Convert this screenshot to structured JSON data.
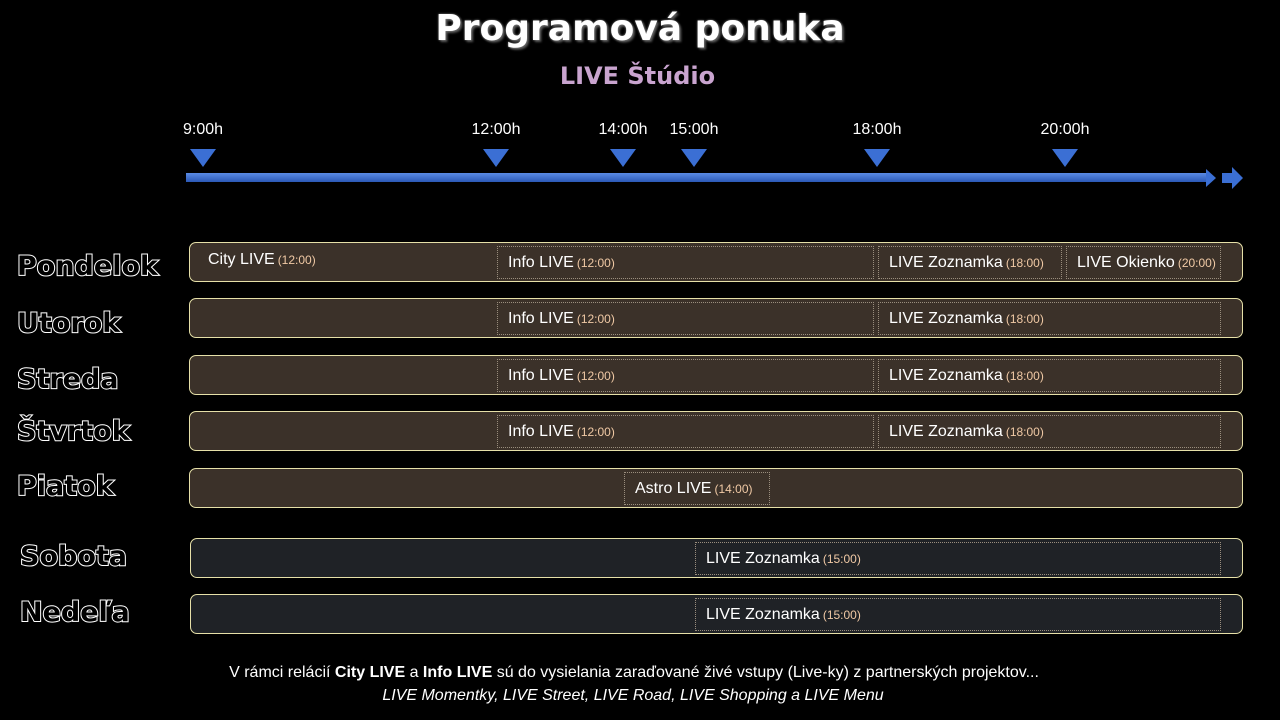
{
  "title": "Programová ponuka",
  "subtitle": "LIVE Štúdio",
  "ticks": [
    {
      "label": "9:00h",
      "hour": 9
    },
    {
      "label": "12:00h",
      "hour": 12
    },
    {
      "label": "14:00h",
      "hour": 14
    },
    {
      "label": "15:00h",
      "hour": 15
    },
    {
      "label": "18:00h",
      "hour": 18
    },
    {
      "label": "20:00h",
      "hour": 20
    }
  ],
  "days": [
    {
      "name": "Pondelok",
      "type": "weekday",
      "slots": [
        {
          "name": "City LIVE",
          "time": "(12:00)",
          "hour": 9,
          "end": 12,
          "plain": true
        },
        {
          "name": "Info LIVE",
          "time": "(12:00)",
          "hour": 12,
          "end": 18
        },
        {
          "name": "LIVE Zoznamka",
          "time": "(18:00)",
          "hour": 18,
          "end": 20
        },
        {
          "name": "LIVE Okienko",
          "time": "(20:00)",
          "hour": 20,
          "end": 21.7
        }
      ]
    },
    {
      "name": "Utorok",
      "type": "weekday",
      "slots": [
        {
          "name": "Info LIVE",
          "time": "(12:00)",
          "hour": 12,
          "end": 18
        },
        {
          "name": "LIVE Zoznamka",
          "time": "(18:00)",
          "hour": 18,
          "end": 21.7
        }
      ]
    },
    {
      "name": "Streda",
      "type": "weekday",
      "slots": [
        {
          "name": "Info LIVE",
          "time": "(12:00)",
          "hour": 12,
          "end": 18
        },
        {
          "name": "LIVE Zoznamka",
          "time": "(18:00)",
          "hour": 18,
          "end": 21.7
        }
      ]
    },
    {
      "name": "Štvrtok",
      "type": "weekday",
      "slots": [
        {
          "name": "Info LIVE",
          "time": "(12:00)",
          "hour": 12,
          "end": 18
        },
        {
          "name": "LIVE Zoznamka",
          "time": "(18:00)",
          "hour": 18,
          "end": 21.7
        }
      ]
    },
    {
      "name": "Piatok",
      "type": "weekday",
      "slots": [
        {
          "name": "Astro LIVE",
          "time": "(14:00)",
          "hour": 14,
          "end": 16.3
        }
      ]
    },
    {
      "name": "Sobota",
      "type": "weekend",
      "slots": [
        {
          "name": "LIVE Zoznamka",
          "time": "(15:00)",
          "hour": 15,
          "end": 21.7
        }
      ]
    },
    {
      "name": "Nedeľa",
      "type": "weekend",
      "slots": [
        {
          "name": "LIVE Zoznamka",
          "time": "(15:00)",
          "hour": 15,
          "end": 21.7
        }
      ]
    }
  ],
  "footer": {
    "line1_pre": "V rámci relácií ",
    "line1_b1": "City LIVE",
    "line1_mid": " a ",
    "line1_b2": "Info LIVE",
    "line1_post": " sú do vysielania zaraďované živé vstupy (Live-ky) z partnerských projektov...",
    "line2": "LIVE Momentky, LIVE Street, LIVE Road, LIVE Shopping a LIVE Menu"
  },
  "colors": {
    "axis": "#3b6fd4",
    "weekday_bar": "#3b3129",
    "weekend_bar": "#1f2226",
    "bar_border": "#e6e0a8",
    "subtitle": "#c9a4cf",
    "slot_time": "#f0c9a5"
  }
}
